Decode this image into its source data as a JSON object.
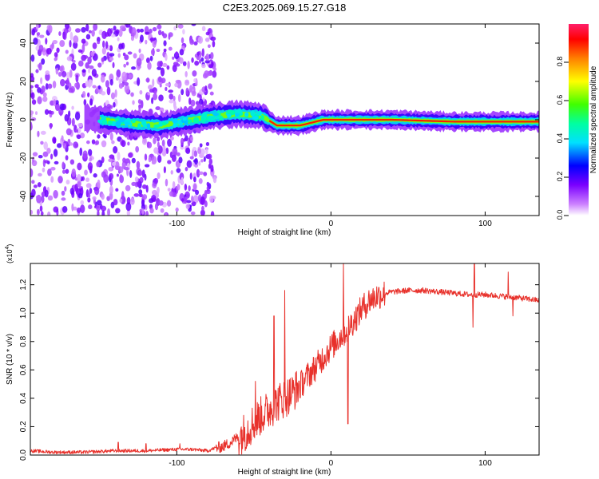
{
  "title": "C2E3.2025.069.15.27.G18",
  "chart_data": [
    {
      "type": "heatmap",
      "name": "spectrogram",
      "xlabel": "Height of straight line (km)",
      "ylabel": "Frequency (Hz)",
      "xlim": [
        -195,
        135
      ],
      "ylim": [
        -50,
        50
      ],
      "xticks": [
        -100,
        0,
        100
      ],
      "xtick_labels": [
        "-100",
        "0",
        "100"
      ],
      "yticks": [
        -40,
        -20,
        0,
        20,
        40
      ],
      "ytick_labels": [
        "-40",
        "-20",
        "0",
        "20",
        "40"
      ],
      "noise_region_x": [
        -195,
        -75
      ],
      "signal_center_hz": [
        {
          "x": -150,
          "y": 0
        },
        {
          "x": -130,
          "y": -2
        },
        {
          "x": -110,
          "y": -3
        },
        {
          "x": -90,
          "y": 0
        },
        {
          "x": -75,
          "y": 2
        },
        {
          "x": -60,
          "y": 3
        },
        {
          "x": -45,
          "y": 2
        },
        {
          "x": -35,
          "y": -3
        },
        {
          "x": -20,
          "y": -3
        },
        {
          "x": -5,
          "y": 0
        },
        {
          "x": 10,
          "y": 0
        },
        {
          "x": 40,
          "y": 0
        },
        {
          "x": 80,
          "y": -1
        },
        {
          "x": 135,
          "y": -1
        }
      ],
      "colorbar": {
        "label": "Normalized spectral amplitude",
        "ticks": [
          0.0,
          0.2,
          0.4,
          0.6,
          0.8
        ],
        "tick_labels": [
          "0.0",
          "0.2",
          "0.4",
          "0.6",
          "0.8"
        ],
        "range": [
          0,
          1
        ]
      }
    },
    {
      "type": "line",
      "name": "snr",
      "xlabel": "Height of straight line (km)",
      "ylabel": "SNR (10 * v/v)",
      "multiplier_label": "(x10",
      "multiplier_exp": "4",
      "xlim": [
        -195,
        135
      ],
      "ylim": [
        0,
        1.35
      ],
      "xticks": [
        -100,
        0,
        100
      ],
      "xtick_labels": [
        "-100",
        "0",
        "100"
      ],
      "yticks": [
        0.0,
        0.2,
        0.4,
        0.6,
        0.8,
        1.0,
        1.2
      ],
      "ytick_labels": [
        "0.0",
        "0.2",
        "0.4",
        "0.6",
        "0.8",
        "1.0",
        "1.2"
      ],
      "color": "#e8312b",
      "series": [
        {
          "name": "SNR",
          "x": [
            -195,
            -180,
            -160,
            -140,
            -120,
            -100,
            -90,
            -80,
            -75,
            -70,
            -65,
            -60,
            -55,
            -50,
            -45,
            -40,
            -35,
            -30,
            -25,
            -20,
            -15,
            -10,
            -5,
            0,
            5,
            10,
            15,
            20,
            25,
            30,
            35,
            40,
            50,
            60,
            70,
            80,
            90,
            100,
            110,
            120,
            135
          ],
          "y": [
            0.03,
            0.02,
            0.02,
            0.03,
            0.03,
            0.04,
            0.04,
            0.03,
            0.05,
            0.06,
            0.09,
            0.13,
            0.17,
            0.23,
            0.28,
            0.32,
            0.37,
            0.4,
            0.44,
            0.49,
            0.56,
            0.62,
            0.69,
            0.76,
            0.82,
            0.88,
            0.95,
            1.03,
            1.09,
            1.12,
            1.14,
            1.15,
            1.16,
            1.16,
            1.15,
            1.14,
            1.13,
            1.13,
            1.12,
            1.11,
            1.09
          ]
        }
      ],
      "spikes": [
        {
          "x": -138,
          "y": 0.09
        },
        {
          "x": -120,
          "y": 0.08
        },
        {
          "x": -98,
          "y": 0.08
        },
        {
          "x": -49,
          "y": 0.52
        },
        {
          "x": -37,
          "y": 0.98
        },
        {
          "x": -30,
          "y": 1.16
        },
        {
          "x": 8,
          "y": 1.35
        },
        {
          "x": 11,
          "y": 0.22
        },
        {
          "x": 93,
          "y": 1.35
        },
        {
          "x": 92,
          "y": 0.9
        },
        {
          "x": 115,
          "y": 1.29
        },
        {
          "x": 118,
          "y": 0.98
        }
      ]
    }
  ]
}
